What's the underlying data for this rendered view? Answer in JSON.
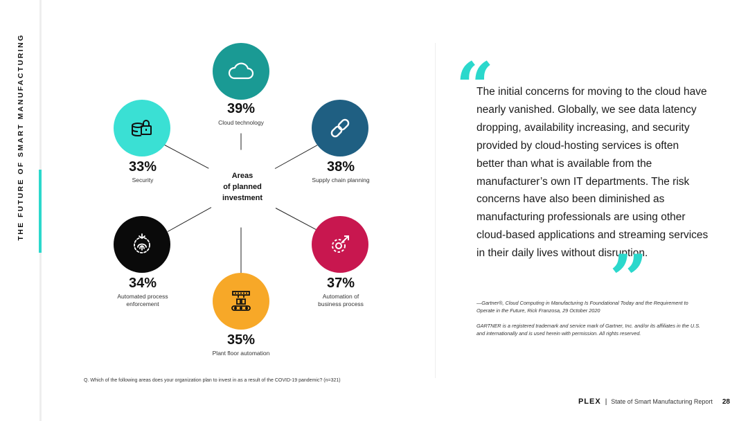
{
  "side_title": "THE FUTURE OF SMART MANUFACTURING",
  "diagram": {
    "center": "Areas\nof planned\ninvestment",
    "nodes": [
      {
        "pct": "39%",
        "label": "Cloud technology",
        "icon": "cloud-icon",
        "color": "#1a9a94"
      },
      {
        "pct": "38%",
        "label": "Supply chain planning",
        "icon": "chain-link-icon",
        "color": "#1f5f82"
      },
      {
        "pct": "37%",
        "label": "Automation of\nbusiness process",
        "icon": "gear-arrow-icon",
        "color": "#c8174f"
      },
      {
        "pct": "35%",
        "label": "Plant floor automation",
        "icon": "conveyor-icon",
        "color": "#f7a828"
      },
      {
        "pct": "34%",
        "label": "Automated process\nenforcement",
        "icon": "fingerprint-gear-icon",
        "color": "#0a0a0a"
      },
      {
        "pct": "33%",
        "label": "Security",
        "icon": "lock-database-icon",
        "color": "#3ae0d4"
      }
    ]
  },
  "footnote": "Q. Which of the following areas does your organization plan to invest in as a result of the COVID-19 pandemic? (n=321)",
  "quote": {
    "text": "The initial concerns for moving to the cloud have nearly vanished. Globally, we see data latency dropping, availability increasing, and security provided by cloud-hosting services is often better than what is available from the manufacturer’s own IT departments. The risk concerns have also been diminished as manufacturing professionals are using other cloud-based applications and streaming services in their daily lives without disruption.",
    "attribution": "—Gartner®, Cloud Computing in Manufacturing Is Foundational Today and the Requirement to Operate in the Future, Rick Franzosa, 29 October 2020",
    "trademark": "GARTNER is a registered trademark and service mark of Gartner, Inc. and/or its affiliates in the U.S. and internationally and is used herein with permission. All rights reserved."
  },
  "footer": {
    "brand": "PLEX",
    "separator": "|",
    "report_title": "State of Smart Manufacturing Report",
    "page_number": "28"
  },
  "colors": {
    "accent": "#2bd8cc"
  }
}
